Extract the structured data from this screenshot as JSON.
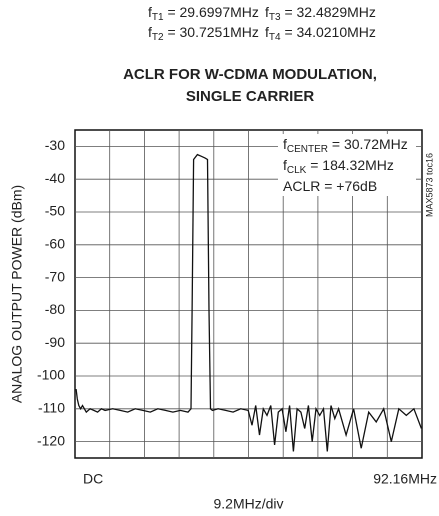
{
  "chart_data": {
    "type": "line",
    "notes": [
      [
        {
          "main": "f",
          "sub": "T1",
          "rest": " = 29.6997MHz"
        },
        {
          "main": "f",
          "sub": "T3",
          "rest": " = 32.4829MHz"
        }
      ],
      [
        {
          "main": "f",
          "sub": "T2",
          "rest": " = 30.7251MHz"
        },
        {
          "main": "f",
          "sub": "T4",
          "rest": " = 34.0210MHz"
        }
      ]
    ],
    "title": [
      "ACLR FOR W-CDMA MODULATION,",
      "SINGLE CARRIER"
    ],
    "ylabel": "ANALOG OUTPUT POWER (dBm)",
    "xlabel": "9.2MHz/div",
    "annotations": [
      {
        "main": "f",
        "sub": "CENTER",
        "rest": " = 30.72MHz"
      },
      {
        "main": "f",
        "sub": "CLK",
        "rest": " = 184.32MHz"
      },
      {
        "main": "ACLR = +76dB",
        "sub": "",
        "rest": ""
      }
    ],
    "side_note": "MAX5873 toc16",
    "xlim": [
      0,
      92.16
    ],
    "xticks": [
      {
        "value": 0,
        "label": "DC"
      },
      {
        "value": 92.16,
        "label": "92.16MHz"
      }
    ],
    "ylim": [
      -125,
      -25
    ],
    "yticks": [
      -30,
      -40,
      -50,
      -60,
      -70,
      -80,
      -90,
      -100,
      -110,
      -120
    ],
    "grid": true,
    "color": "#111111",
    "x": [
      0.3,
      0.6,
      1,
      1.5,
      2,
      3,
      4,
      5,
      6,
      7,
      8,
      10,
      12,
      14,
      16,
      18,
      20,
      22,
      24,
      26,
      28,
      30,
      30.8,
      31.1,
      31.5,
      32.5,
      33.5,
      34.5,
      35.2,
      35.6,
      36,
      36.5,
      38,
      40,
      42,
      44,
      46,
      47,
      48,
      49,
      50,
      51,
      52,
      53,
      54,
      55,
      56,
      57,
      58,
      59,
      60,
      61,
      62,
      63,
      64,
      65,
      66,
      67,
      68,
      69,
      70,
      72,
      74,
      76,
      78,
      80,
      82,
      84,
      86,
      88,
      90,
      92
    ],
    "values": [
      -104,
      -107,
      -109,
      -110,
      -109,
      -111,
      -110,
      -110.5,
      -111,
      -110,
      -110.5,
      -110,
      -110.5,
      -111,
      -110,
      -110.5,
      -111,
      -110,
      -110.5,
      -111,
      -110.5,
      -111,
      -110,
      -80,
      -34,
      -32.5,
      -33,
      -33.5,
      -34,
      -80,
      -110,
      -110.5,
      -110,
      -110.5,
      -111,
      -110,
      -110.5,
      -115,
      -109,
      -118,
      -110,
      -112,
      -109,
      -121,
      -111,
      -110,
      -117,
      -109,
      -123,
      -110,
      -111,
      -116,
      -109,
      -120,
      -110,
      -112,
      -110,
      -123,
      -109,
      -113,
      -110,
      -118,
      -110,
      -122,
      -111,
      -114,
      -110,
      -120,
      -110,
      -112,
      -110,
      -116
    ]
  }
}
